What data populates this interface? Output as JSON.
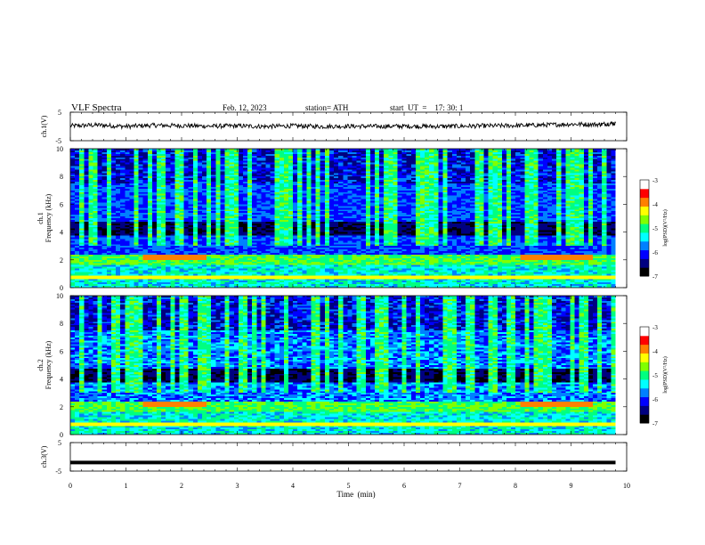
{
  "header": {
    "title": "VLF  Spectra",
    "date": "Feb. 12, 2023",
    "station": "station= ATH",
    "start": "start  UT  =    17: 30: 1"
  },
  "colors": {
    "background": "#ffffff",
    "axis": "#000000",
    "colormap": [
      "#000000",
      "#000080",
      "#0000ff",
      "#0080ff",
      "#00ffff",
      "#00ff80",
      "#80ff00",
      "#ffff00",
      "#ff8000",
      "#ff0000",
      "#ffffff"
    ]
  },
  "chart_data": [
    {
      "type": "line",
      "panel": "ch1-waveform",
      "ylabel": "ch.1(V)",
      "ylim": [
        -5,
        5
      ],
      "yticks": [
        "5",
        "-5"
      ],
      "xlim": [
        0,
        10
      ],
      "series": [
        {
          "x": [
            0.0,
            0.5,
            1.0,
            1.5,
            2.0,
            2.5,
            3.0,
            3.5,
            4.0,
            4.5,
            5.0,
            5.5,
            6.0,
            6.5,
            7.0,
            7.5,
            8.0,
            8.5,
            9.0,
            9.5,
            9.8
          ],
          "values": [
            0.2,
            0.5,
            0.0,
            0.4,
            0.3,
            0.1,
            0.2,
            0.0,
            0.2,
            0.0,
            0.1,
            0.0,
            0.1,
            0.0,
            0.1,
            0.2,
            0.3,
            0.5,
            0.8,
            0.7,
            1.2
          ]
        }
      ]
    },
    {
      "type": "heatmap",
      "panel": "ch1-spectrogram",
      "ylabel": "ch.1\nFrequency  (kHz)",
      "ylim": [
        0,
        10
      ],
      "yticks": [
        "0",
        "2",
        "4",
        "6",
        "8",
        "10"
      ],
      "xlim": [
        0,
        9.8
      ],
      "colorbar": {
        "label": "log(PSD)(V²/Hz)",
        "range": [
          -7,
          -3
        ],
        "ticks": [
          "-3",
          "-4",
          "-5",
          "-6",
          "-7"
        ]
      }
    },
    {
      "type": "heatmap",
      "panel": "ch2-spectrogram",
      "ylabel": "ch.2\nFrequency  (kHz)",
      "ylim": [
        0,
        10
      ],
      "yticks": [
        "0",
        "2",
        "4",
        "6",
        "8",
        "10"
      ],
      "xlim": [
        0,
        9.8
      ],
      "colorbar": {
        "label": "log(PSD)(V²/Hz)",
        "range": [
          -7,
          -3
        ],
        "ticks": [
          "-3",
          "-4",
          "-5",
          "-6",
          "-7"
        ]
      }
    },
    {
      "type": "line",
      "panel": "ch3-waveform",
      "ylabel": "ch.3(V)",
      "ylim": [
        -5,
        5
      ],
      "yticks": [
        "5",
        "-5"
      ],
      "xlim": [
        0,
        10
      ],
      "series": [
        {
          "x": [
            0.0,
            9.8
          ],
          "values": [
            -2,
            -2
          ]
        }
      ]
    }
  ],
  "x_axis": {
    "label": "Time  (min)",
    "ticks": [
      "0",
      "1",
      "2",
      "3",
      "4",
      "5",
      "6",
      "7",
      "8",
      "9",
      "10"
    ]
  }
}
